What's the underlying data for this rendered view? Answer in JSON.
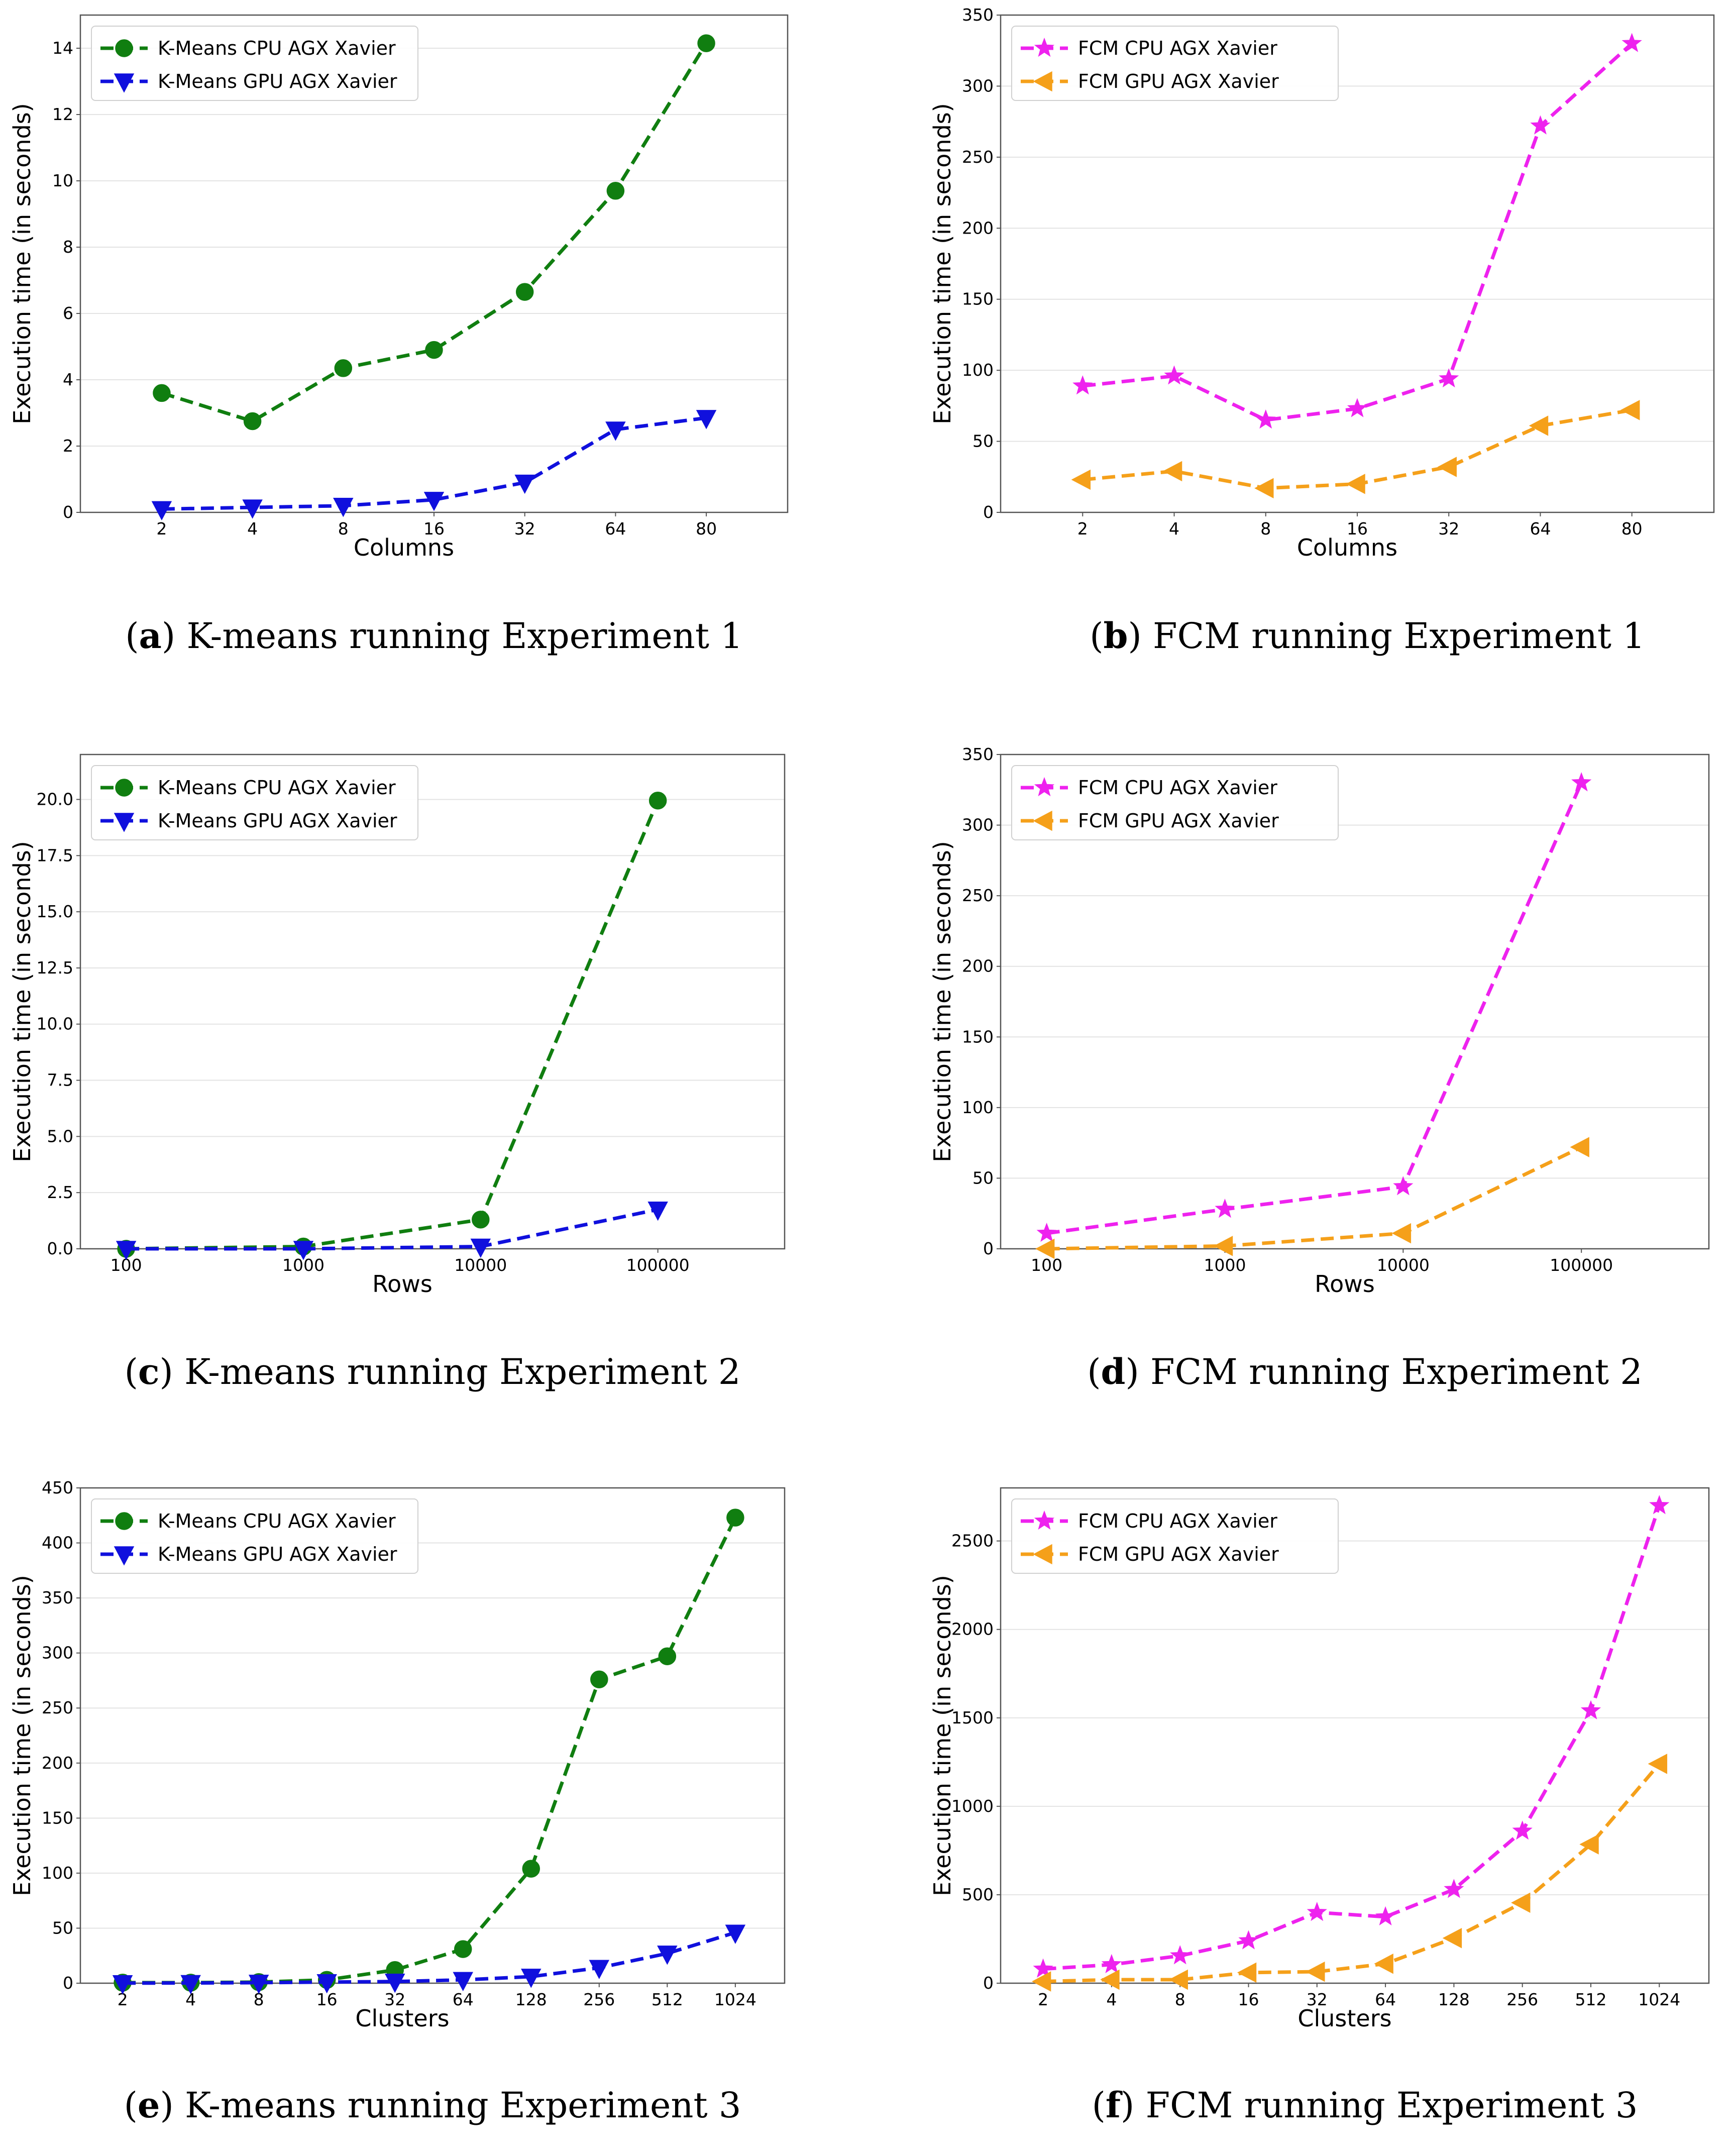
{
  "chart_data": [
    {
      "type": "line",
      "title": "",
      "xlabel": "Columns",
      "ylabel": "Execution time (in seconds)",
      "categories": [
        "2",
        "4",
        "8",
        "16",
        "32",
        "64",
        "80"
      ],
      "ylim": [
        0,
        15
      ],
      "yticks": [
        0,
        2,
        4,
        6,
        8,
        10,
        12,
        14
      ],
      "legend_position": "top-left",
      "series": [
        {
          "name": "K-Means CPU AGX Xavier",
          "color": "#107e10",
          "marker": "circle",
          "values": [
            3.6,
            2.75,
            4.35,
            4.9,
            6.65,
            9.7,
            14.15
          ]
        },
        {
          "name": "K-Means GPU AGX Xavier",
          "color": "#1010dd",
          "marker": "triangle-down",
          "values": [
            0.1,
            0.15,
            0.2,
            0.38,
            0.9,
            2.5,
            2.85
          ]
        }
      ],
      "caption_letter": "(a)",
      "caption_text": "K-means running Experiment 1"
    },
    {
      "type": "line",
      "title": "",
      "xlabel": "Columns",
      "ylabel": "Execution time (in seconds)",
      "categories": [
        "2",
        "4",
        "8",
        "16",
        "32",
        "64",
        "80"
      ],
      "ylim": [
        0,
        350
      ],
      "yticks": [
        0,
        50,
        100,
        150,
        200,
        250,
        300,
        350
      ],
      "legend_position": "top-left",
      "series": [
        {
          "name": "FCM CPU AGX Xavier",
          "color": "#ee22ee",
          "marker": "star",
          "values": [
            89,
            96,
            65,
            73,
            94,
            272,
            330
          ]
        },
        {
          "name": "FCM GPU AGX Xavier",
          "color": "#f5a01a",
          "marker": "triangle-left",
          "values": [
            23,
            29,
            17,
            20,
            32,
            61,
            72
          ]
        }
      ],
      "caption_letter": "(b)",
      "caption_text": "FCM running Experiment 1"
    },
    {
      "type": "line",
      "title": "",
      "xlabel": "Rows",
      "ylabel": "Execution time (in seconds)",
      "categories": [
        "100",
        "1000",
        "10000",
        "100000"
      ],
      "ylim": [
        0,
        22
      ],
      "yticks": [
        0.0,
        2.5,
        5.0,
        7.5,
        10.0,
        12.5,
        15.0,
        17.5,
        20.0
      ],
      "yticks_fmt": 1,
      "legend_position": "top-left",
      "series": [
        {
          "name": "K-Means CPU AGX Xavier",
          "color": "#107e10",
          "marker": "circle",
          "values": [
            0.0,
            0.1,
            1.3,
            19.95
          ]
        },
        {
          "name": "K-Means GPU AGX Xavier",
          "color": "#1010dd",
          "marker": "triangle-down",
          "values": [
            0.0,
            0.0,
            0.1,
            1.75
          ]
        }
      ],
      "caption_letter": "(c)",
      "caption_text": "K-means running Experiment 2"
    },
    {
      "type": "line",
      "title": "",
      "xlabel": "Rows",
      "ylabel": "Execution time (in seconds)",
      "categories": [
        "100",
        "1000",
        "10000",
        "100000"
      ],
      "ylim": [
        0,
        350
      ],
      "yticks": [
        0,
        50,
        100,
        150,
        200,
        250,
        300,
        350
      ],
      "legend_position": "top-left",
      "series": [
        {
          "name": "FCM CPU AGX Xavier",
          "color": "#ee22ee",
          "marker": "star",
          "values": [
            11,
            28,
            44,
            330
          ]
        },
        {
          "name": "FCM GPU AGX Xavier",
          "color": "#f5a01a",
          "marker": "triangle-left",
          "values": [
            0,
            2,
            11,
            72
          ]
        }
      ],
      "caption_letter": "(d)",
      "caption_text": "FCM running Experiment 2"
    },
    {
      "type": "line",
      "title": "",
      "xlabel": "Clusters",
      "ylabel": "Execution time (in seconds)",
      "categories": [
        "2",
        "4",
        "8",
        "16",
        "32",
        "64",
        "128",
        "256",
        "512",
        "1024"
      ],
      "ylim": [
        0,
        450
      ],
      "yticks": [
        0,
        50,
        100,
        150,
        200,
        250,
        300,
        350,
        400,
        450
      ],
      "legend_position": "top-left",
      "series": [
        {
          "name": "K-Means CPU AGX Xavier",
          "color": "#107e10",
          "marker": "circle",
          "values": [
            0.5,
            0.5,
            1,
            3,
            12,
            31,
            104,
            276,
            297,
            423
          ]
        },
        {
          "name": "K-Means GPU AGX Xavier",
          "color": "#1010dd",
          "marker": "triangle-down",
          "values": [
            0.1,
            0.2,
            0.5,
            1,
            1.5,
            3,
            6,
            14,
            27,
            46
          ]
        }
      ],
      "caption_letter": "(e)",
      "caption_text": "K-means running Experiment 3"
    },
    {
      "type": "line",
      "title": "",
      "xlabel": "Clusters",
      "ylabel": "Execution time (in seconds)",
      "categories": [
        "2",
        "4",
        "8",
        "16",
        "32",
        "64",
        "128",
        "256",
        "512",
        "1024"
      ],
      "ylim": [
        0,
        2800
      ],
      "yticks": [
        0,
        500,
        1000,
        1500,
        2000,
        2500
      ],
      "legend_position": "top-left",
      "series": [
        {
          "name": "FCM CPU AGX Xavier",
          "color": "#ee22ee",
          "marker": "star",
          "values": [
            80,
            105,
            155,
            240,
            400,
            375,
            530,
            860,
            1540,
            2700
          ]
        },
        {
          "name": "FCM GPU AGX Xavier",
          "color": "#f5a01a",
          "marker": "triangle-left",
          "values": [
            10,
            20,
            20,
            60,
            65,
            110,
            255,
            455,
            785,
            1240
          ]
        }
      ],
      "caption_letter": "(f)",
      "caption_text": "FCM running Experiment 3"
    }
  ]
}
